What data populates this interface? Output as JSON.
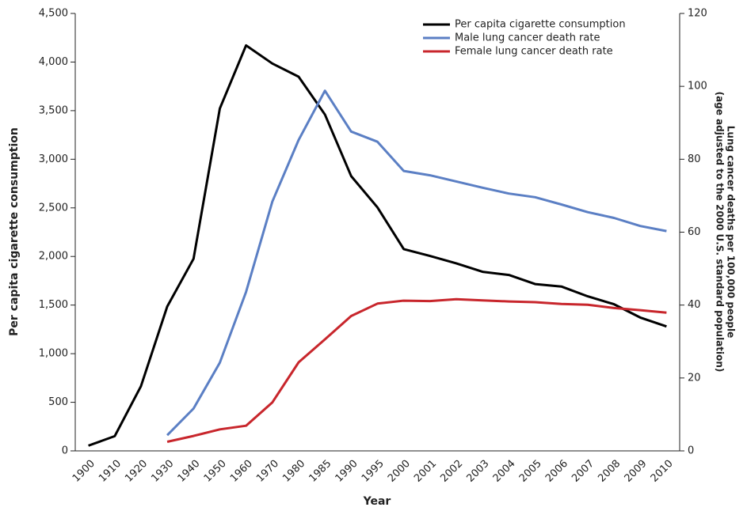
{
  "chart_data": {
    "type": "line",
    "x_label": "Year",
    "y_label": "Per capita cigarette consumption",
    "y2_label": [
      "Lung cancer deaths per 100,000 people",
      "(age adjusted to the 2000 U.S. standard population)"
    ],
    "categories": [
      "1900",
      "1910",
      "1920",
      "1930",
      "1940",
      "1950",
      "1960",
      "1970",
      "1980",
      "1985",
      "1990",
      "1995",
      "2000",
      "2001",
      "2002",
      "2003",
      "2004",
      "2005",
      "2006",
      "2007",
      "2008",
      "2009",
      "2010"
    ],
    "series": [
      {
        "name": "Per capita cigarette consumption",
        "color": "#000000",
        "values": [
          54,
          151,
          665,
          1485,
          1976,
          3522,
          4171,
          3985,
          3849,
          3460,
          2827,
          2505,
          2076,
          2005,
          1929,
          1842,
          1810,
          1716,
          1691,
          1590,
          1509,
          1372,
          1280
        ]
      },
      {
        "name": "Male lung cancer death rate",
        "color": "#5b7fc4",
        "axis": "y2",
        "values": [
          null,
          null,
          null,
          4.3,
          11.6,
          24.2,
          43.6,
          68.4,
          85.3,
          98.8,
          87.6,
          84.8,
          76.8,
          75.6,
          73.9,
          72.2,
          70.6,
          69.6,
          67.6,
          65.5,
          63.9,
          61.7,
          60.3
        ]
      },
      {
        "name": "Female lung cancer death rate",
        "color": "#c8262c",
        "axis": "y2",
        "values": [
          null,
          null,
          null,
          2.5,
          4.1,
          5.9,
          6.9,
          13.3,
          24.3,
          30.6,
          37.0,
          40.4,
          41.2,
          41.1,
          41.6,
          41.3,
          41.0,
          40.8,
          40.3,
          40.1,
          39.2,
          38.6,
          37.9
        ]
      }
    ],
    "ylim": [
      0,
      4500
    ],
    "yticks": [
      0,
      500,
      {
        "value": 1000,
        "label": "1,000"
      },
      {
        "value": 1500,
        "label": "1,500"
      },
      {
        "value": 2000,
        "label": "2,000"
      },
      {
        "value": 2500,
        "label": "2,500"
      },
      {
        "value": 3000,
        "label": "3,000"
      },
      {
        "value": 3500,
        "label": "3,500"
      },
      {
        "value": 4000,
        "label": "4,000"
      },
      {
        "value": 4500,
        "label": "4,500"
      }
    ],
    "y2lim": [
      0,
      120
    ],
    "y2ticks": [
      0,
      20,
      40,
      60,
      80,
      100,
      120
    ],
    "grid": false,
    "legend": "top-right"
  }
}
